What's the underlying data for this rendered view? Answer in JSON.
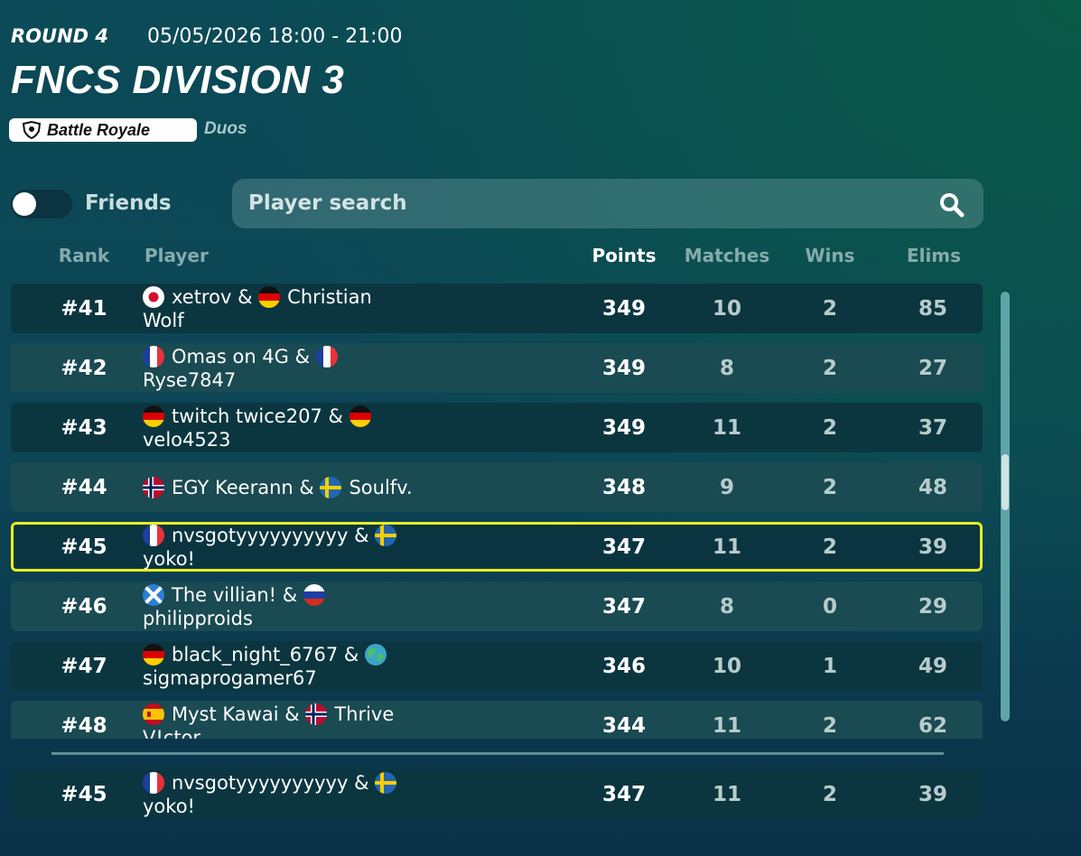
{
  "header": {
    "round": "ROUND 4",
    "datetime": "05/05/2026 18:00 - 21:00",
    "title": "FNCS DIVISION 3",
    "mode": "Battle Royale",
    "team_size": "Duos"
  },
  "filters": {
    "friends_label": "Friends",
    "search_placeholder": "Player search"
  },
  "table": {
    "columns": [
      "Rank",
      "Player",
      "Points",
      "Matches",
      "Wins",
      "Elims"
    ],
    "rows": [
      {
        "rank": "#41",
        "player": [
          "xetrov",
          "&",
          "Christian Wolf"
        ],
        "points": 349,
        "matches": 10,
        "wins": 2,
        "elims": 85
      },
      {
        "rank": "#42",
        "player": [
          "Omas on 4G",
          "&",
          "Ryse7847"
        ],
        "points": 349,
        "matches": 8,
        "wins": 2,
        "elims": 27
      },
      {
        "rank": "#43",
        "player": [
          "twitch twice207",
          "&",
          "velo4523"
        ],
        "points": 349,
        "matches": 11,
        "wins": 2,
        "elims": 37
      },
      {
        "rank": "#44",
        "player": [
          "EGY Keerann",
          "&",
          "Soulfv."
        ],
        "points": 348,
        "matches": 9,
        "wins": 2,
        "elims": 48
      },
      {
        "rank": "#45",
        "player": [
          "nvsgotyyyyyyyyyy",
          "&",
          "yoko!"
        ],
        "points": 347,
        "matches": 11,
        "wins": 2,
        "elims": 39
      },
      {
        "rank": "#46",
        "player": [
          "The villian!",
          "&",
          "philipproids"
        ],
        "points": 347,
        "matches": 8,
        "wins": 0,
        "elims": 29
      },
      {
        "rank": "#47",
        "player": [
          "black_night_6767",
          "&",
          "sigmaprogamer67"
        ],
        "points": 346,
        "matches": 10,
        "wins": 1,
        "elims": 49
      },
      {
        "rank": "#48",
        "player": [
          "Myst Kawai",
          "&",
          "Thrive V!ctor"
        ],
        "points": 344,
        "matches": 11,
        "wins": 2,
        "elims": 62
      }
    ],
    "current_player": {
      "rank": "#45",
      "player": [
        "nvsgotyyyyyyyyyy",
        "&",
        "yoko!"
      ],
      "points": 347,
      "matches": 11,
      "wins": 2,
      "elims": 39
    }
  }
}
